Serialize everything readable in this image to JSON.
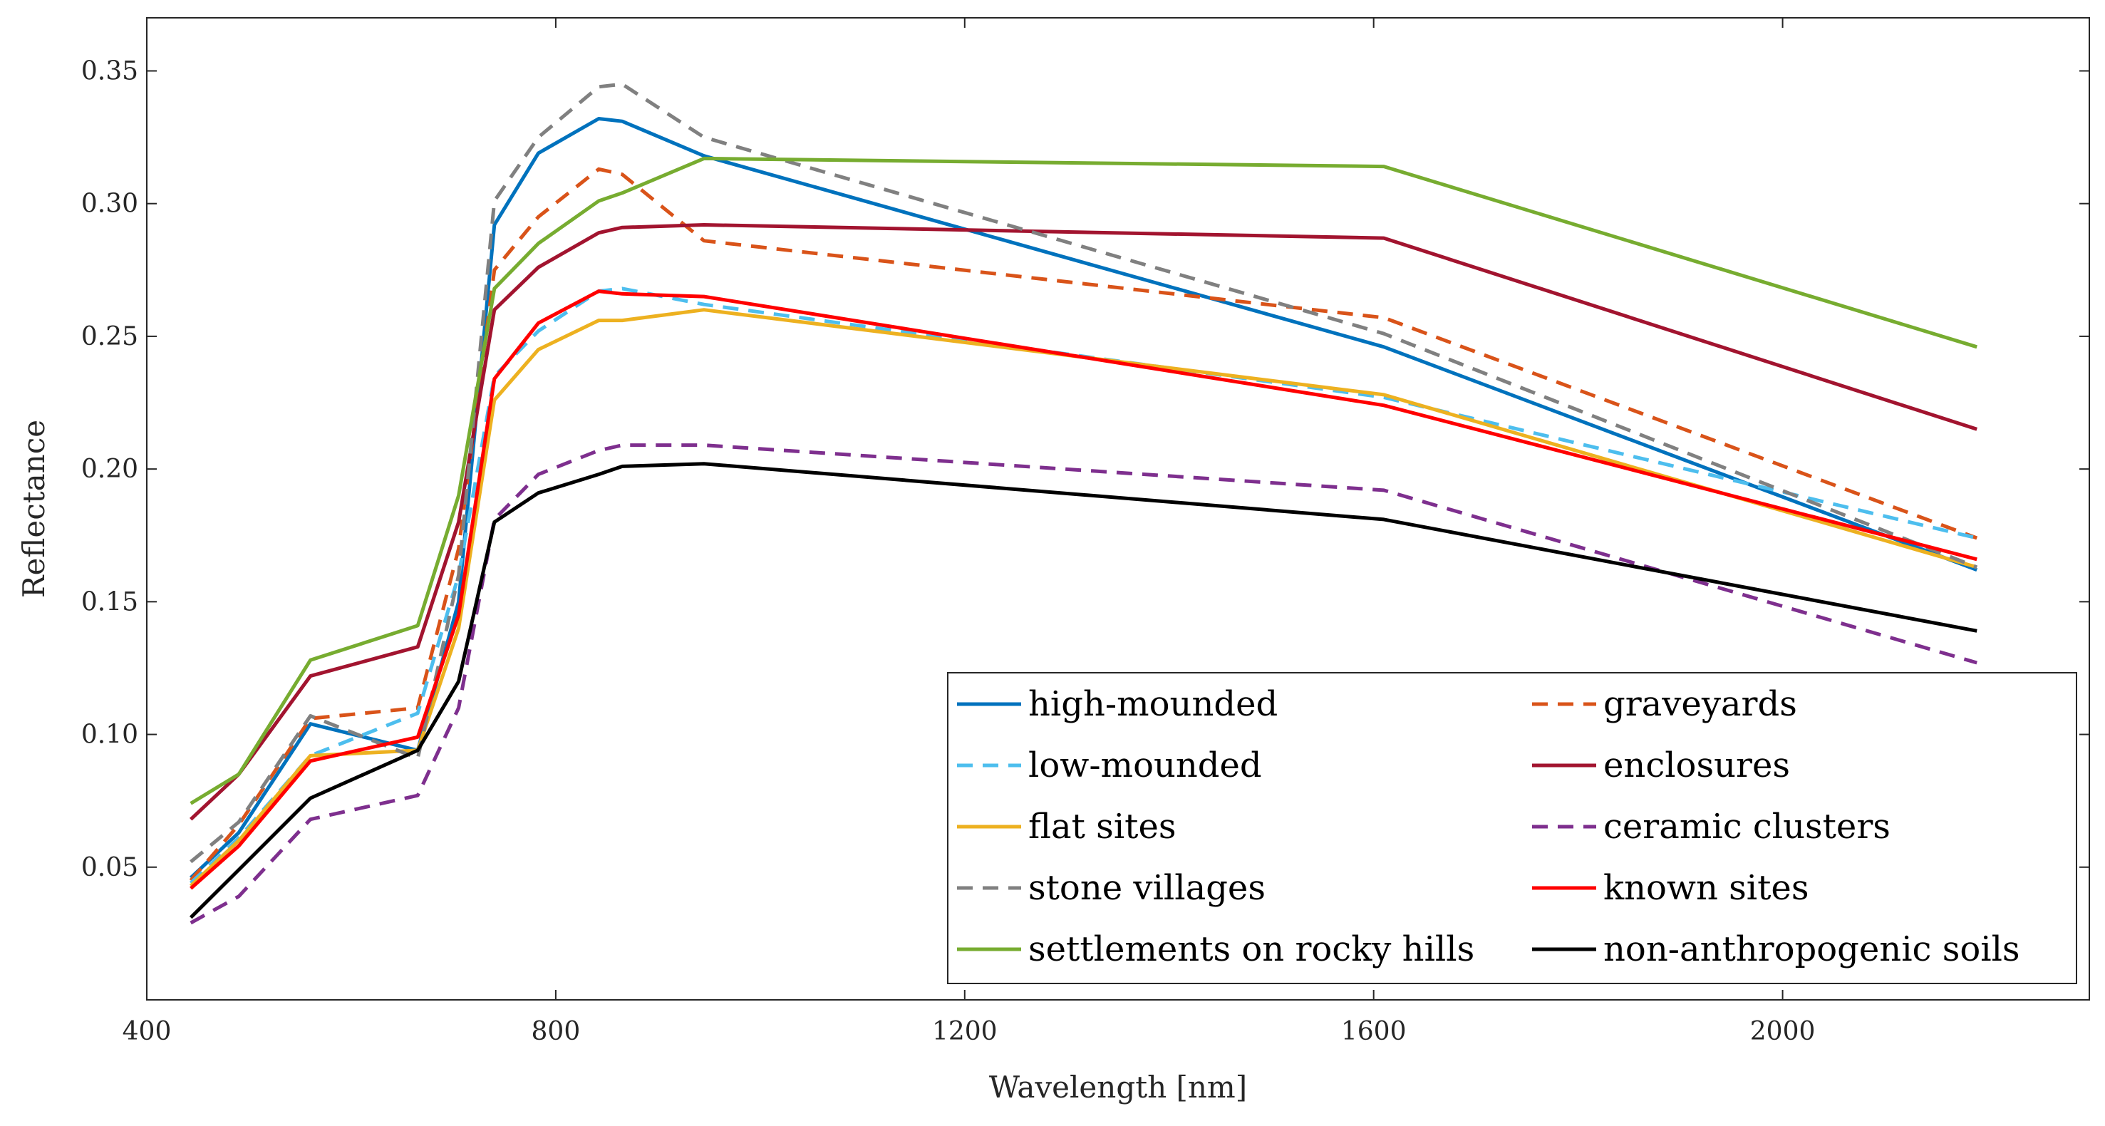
{
  "chart_data": {
    "type": "line",
    "title": "",
    "xlabel": "Wavelength [nm]",
    "ylabel": "Reflectance",
    "xlim": [
      400,
      2300
    ],
    "ylim": [
      0.0,
      0.37
    ],
    "x": [
      443,
      490,
      560,
      665,
      705,
      740,
      783,
      842,
      865,
      945,
      1610,
      2190
    ],
    "xticks": [
      400,
      800,
      1200,
      1600,
      2000
    ],
    "xtick_labels": [
      "400",
      "800",
      "1200",
      "1600",
      "2000"
    ],
    "yticks": [
      0.05,
      0.1,
      0.15,
      0.2,
      0.25,
      0.3,
      0.35
    ],
    "ytick_labels": [
      "0.05",
      "0.10",
      "0.15",
      "0.20",
      "0.25",
      "0.30",
      "0.35"
    ],
    "grid": false,
    "legend_position": "bottom-right",
    "series": [
      {
        "name": "high-mounded",
        "color": "#0072BD",
        "dash": "solid",
        "values": [
          0.046,
          0.063,
          0.104,
          0.094,
          0.15,
          0.292,
          0.319,
          0.332,
          0.331,
          0.318,
          0.246,
          0.162
        ]
      },
      {
        "name": "graveyards",
        "color": "#D95319",
        "dash": "dashed",
        "values": [
          0.045,
          0.066,
          0.106,
          0.11,
          0.17,
          0.275,
          0.295,
          0.313,
          0.311,
          0.286,
          0.257,
          0.174
        ]
      },
      {
        "name": "low-mounded",
        "color": "#4DBEEE",
        "dash": "dashed",
        "values": [
          0.044,
          0.061,
          0.092,
          0.108,
          0.16,
          0.235,
          0.252,
          0.267,
          0.268,
          0.262,
          0.227,
          0.174
        ]
      },
      {
        "name": "enclosures",
        "color": "#A2142F",
        "dash": "solid",
        "values": [
          0.068,
          0.085,
          0.122,
          0.133,
          0.18,
          0.26,
          0.276,
          0.289,
          0.291,
          0.292,
          0.287,
          0.215
        ]
      },
      {
        "name": "flat sites",
        "color": "#EDB120",
        "dash": "solid",
        "values": [
          0.043,
          0.06,
          0.092,
          0.094,
          0.14,
          0.226,
          0.245,
          0.256,
          0.256,
          0.26,
          0.228,
          0.163
        ]
      },
      {
        "name": "ceramic clusters",
        "color": "#7E2F8E",
        "dash": "dashed",
        "values": [
          0.029,
          0.039,
          0.068,
          0.077,
          0.11,
          0.181,
          0.198,
          0.207,
          0.209,
          0.209,
          0.192,
          0.127
        ]
      },
      {
        "name": "stone villages",
        "color": "#808080",
        "dash": "dashed",
        "values": [
          0.052,
          0.067,
          0.107,
          0.091,
          0.16,
          0.301,
          0.325,
          0.344,
          0.345,
          0.325,
          0.251,
          0.163
        ]
      },
      {
        "name": "known sites",
        "color": "#FF0000",
        "dash": "solid",
        "values": [
          0.042,
          0.058,
          0.09,
          0.099,
          0.145,
          0.234,
          0.255,
          0.267,
          0.266,
          0.265,
          0.224,
          0.166
        ]
      },
      {
        "name": "settlements on rocky hills",
        "color": "#77AC30",
        "dash": "solid",
        "values": [
          0.074,
          0.085,
          0.128,
          0.141,
          0.19,
          0.268,
          0.285,
          0.301,
          0.304,
          0.317,
          0.314,
          0.246
        ]
      },
      {
        "name": "non-anthropogenic soils",
        "color": "#000000",
        "dash": "solid",
        "values": [
          0.031,
          0.049,
          0.076,
          0.094,
          0.12,
          0.18,
          0.191,
          0.198,
          0.201,
          0.202,
          0.181,
          0.139
        ]
      }
    ]
  }
}
